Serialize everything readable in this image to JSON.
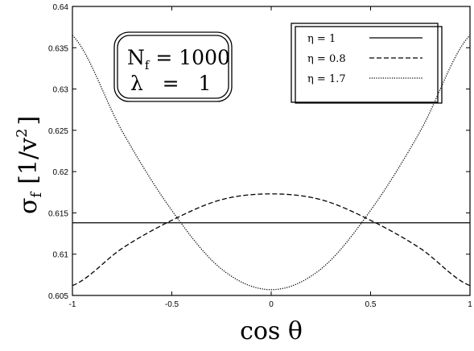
{
  "chart_data": {
    "type": "line",
    "title": "",
    "xlabel": "cos θ",
    "ylabel_main": "σ",
    "ylabel_sub": "f",
    "ylabel_units": "[1/v",
    "ylabel_units_sup": "2",
    "ylabel_units_close": "]",
    "xlim": [
      -1,
      1
    ],
    "ylim": [
      0.605,
      0.64
    ],
    "xticks": [
      -1,
      -0.5,
      0,
      0.5,
      1
    ],
    "xtick_labels": [
      "-1",
      "-0.5",
      "0",
      "0.5",
      "1"
    ],
    "yticks": [
      0.605,
      0.61,
      0.615,
      0.62,
      0.625,
      0.63,
      0.635,
      0.64
    ],
    "ytick_labels": [
      "0.605",
      "0.61",
      "0.615",
      "0.62",
      "0.625",
      "0.63",
      "0.635",
      "0.64"
    ],
    "grid": false,
    "legend_position": "top-right",
    "series": [
      {
        "name": "η = 1",
        "style": "solid",
        "x": [
          -1,
          -0.5,
          0,
          0.5,
          1
        ],
        "y": [
          0.6138,
          0.6138,
          0.6138,
          0.6138,
          0.6138
        ]
      },
      {
        "name": "η = 0.8",
        "style": "dashed",
        "x": [
          -1,
          -0.75,
          -0.5,
          -0.25,
          0,
          0.25,
          0.5,
          0.75,
          1
        ],
        "y": [
          0.6062,
          0.6107,
          0.6141,
          0.6166,
          0.6173,
          0.6166,
          0.6141,
          0.6107,
          0.6062
        ]
      },
      {
        "name": "η = 1.7",
        "style": "dotted",
        "x": [
          -1,
          -0.75,
          -0.5,
          -0.25,
          0,
          0.25,
          0.5,
          0.75,
          1
        ],
        "y": [
          0.6365,
          0.6249,
          0.6153,
          0.6082,
          0.6057,
          0.6082,
          0.6153,
          0.6249,
          0.6365
        ]
      }
    ],
    "annotation": {
      "line1_main": "N",
      "line1_sub": "f",
      "line1_rest": " = 1000",
      "line2": "λ   =   1"
    }
  }
}
